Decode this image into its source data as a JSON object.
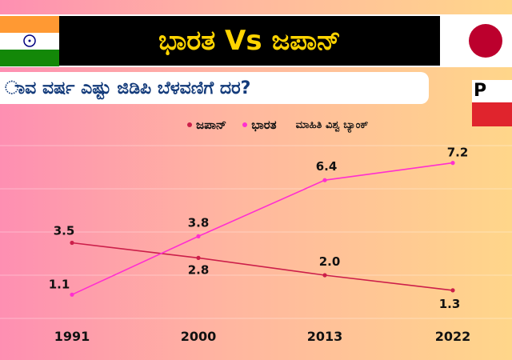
{
  "header": {
    "title": "ಭಾರತ Vs  ಜಪಾನ್",
    "subtitle": "ಾವ ವರ್ಷ ಎಷ್ಟು ಜಿಡಿಪಿ ಬೆಳವಣಿಗೆ ದರ?"
  },
  "logo": {
    "text": "P"
  },
  "flags": {
    "india": {
      "saffron": "#ff9933",
      "white": "#ffffff",
      "green": "#138808",
      "chakra": "#000080"
    },
    "japan": {
      "background": "#ffffff",
      "disc": "#bc002d"
    }
  },
  "legend": {
    "items": [
      {
        "label": "ಜಪಾನ್",
        "color": "#cc1f4a"
      },
      {
        "label": "ಭಾರತ",
        "color": "#ff2fd0"
      }
    ],
    "source": "ಮಾಹಿತಿ ವಿಶ್ವ ಬ್ಯಾಂಕ್"
  },
  "chart_data": {
    "type": "line",
    "x": [
      "1991",
      "2000",
      "2013",
      "2022"
    ],
    "series": [
      {
        "name": "ಜಪಾನ್",
        "values": [
          3.5,
          2.8,
          2.0,
          1.3
        ],
        "color": "#cc1f4a"
      },
      {
        "name": "ಭಾರತ",
        "values": [
          1.1,
          3.8,
          6.4,
          7.2
        ],
        "color": "#ff2fd0"
      }
    ],
    "ylim": [
      0,
      8
    ],
    "grid": true,
    "legend_position": "top"
  }
}
